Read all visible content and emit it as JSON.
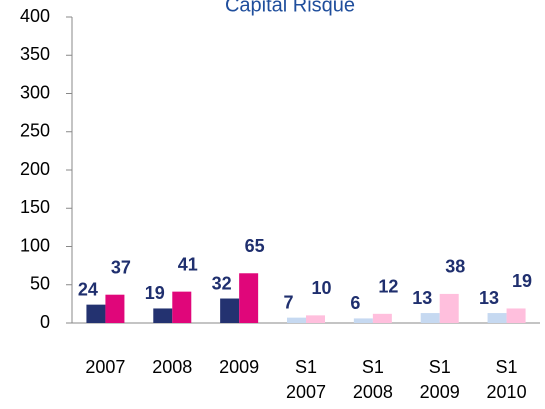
{
  "chart_data": {
    "type": "bar",
    "title": "Capital Risque",
    "categories": [
      "2007",
      "2008",
      "2009",
      "S1\n2007",
      "S1\n2008",
      "S1\n2009",
      "S1\n2010"
    ],
    "series": [
      {
        "color": [
          "#233270",
          "#233270",
          "#233270",
          "#c6d9f1",
          "#c6d9f1",
          "#c6d9f1",
          "#c6d9f1"
        ],
        "values": [
          24,
          19,
          32,
          7,
          6,
          13,
          13
        ]
      },
      {
        "color": [
          "#e0067a",
          "#e0067a",
          "#e0067a",
          "#ffbfdd",
          "#ffbfdd",
          "#ffbfdd",
          "#ffbfdd"
        ],
        "values": [
          37,
          41,
          65,
          10,
          12,
          38,
          19
        ]
      }
    ],
    "ylim": [
      0,
      400
    ],
    "yticks": [
      0,
      50,
      100,
      150,
      200,
      250,
      300,
      350,
      400
    ],
    "grid": false
  }
}
